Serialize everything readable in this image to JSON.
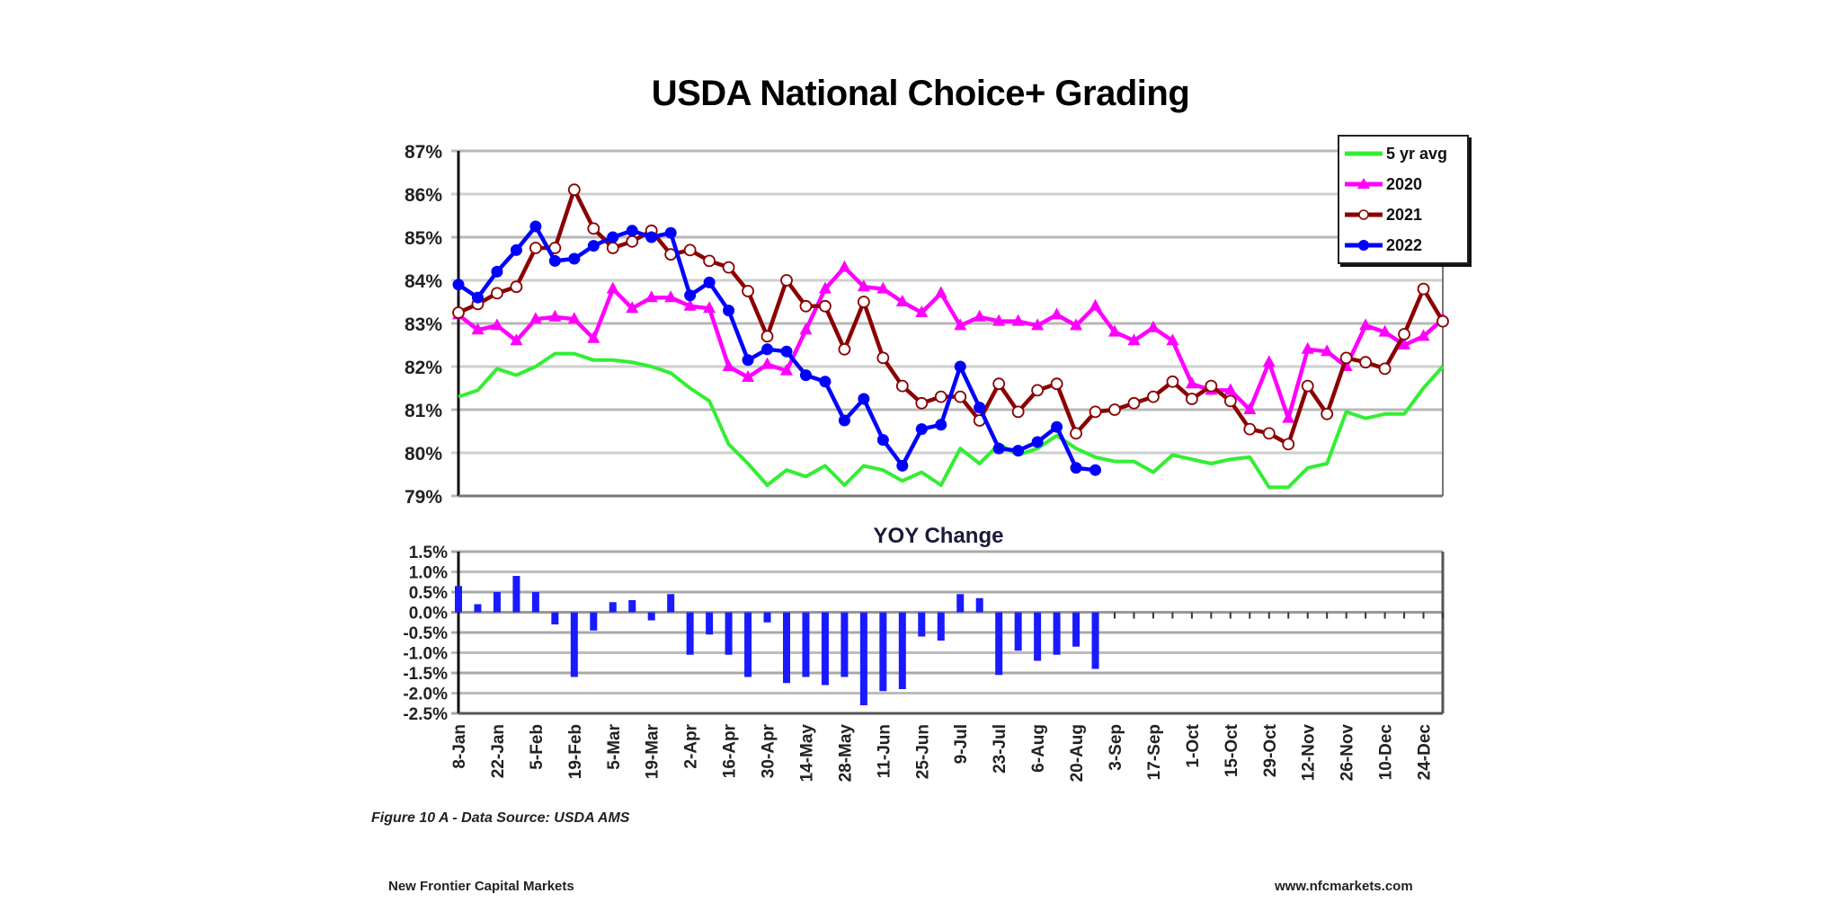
{
  "chart_data": [
    {
      "type": "line",
      "title": "USDA National Choice+ Grading",
      "xlabel": "",
      "ylabel": "",
      "ylim": [
        79,
        87
      ],
      "ytick_labels": [
        "79%",
        "80%",
        "81%",
        "82%",
        "83%",
        "84%",
        "85%",
        "86%",
        "87%"
      ],
      "yticks": [
        79,
        80,
        81,
        82,
        83,
        84,
        85,
        86,
        87
      ],
      "grid": true,
      "legend_position": "top-right",
      "x": [
        "8-Jan",
        "15-Jan",
        "22-Jan",
        "29-Jan",
        "5-Feb",
        "12-Feb",
        "19-Feb",
        "26-Feb",
        "5-Mar",
        "12-Mar",
        "19-Mar",
        "26-Mar",
        "2-Apr",
        "9-Apr",
        "16-Apr",
        "23-Apr",
        "30-Apr",
        "7-May",
        "14-May",
        "21-May",
        "28-May",
        "4-Jun",
        "11-Jun",
        "18-Jun",
        "25-Jun",
        "2-Jul",
        "9-Jul",
        "16-Jul",
        "23-Jul",
        "30-Jul",
        "6-Aug",
        "13-Aug",
        "20-Aug",
        "27-Aug",
        "3-Sep",
        "10-Sep",
        "17-Sep",
        "24-Sep",
        "1-Oct",
        "8-Oct",
        "15-Oct",
        "22-Oct",
        "29-Oct",
        "5-Nov",
        "12-Nov",
        "19-Nov",
        "26-Nov",
        "3-Dec",
        "10-Dec",
        "17-Dec",
        "24-Dec",
        "31-Dec"
      ],
      "xtick_labels": [
        "8-Jan",
        "22-Jan",
        "5-Feb",
        "19-Feb",
        "5-Mar",
        "19-Mar",
        "2-Apr",
        "16-Apr",
        "30-Apr",
        "14-May",
        "28-May",
        "11-Jun",
        "25-Jun",
        "9-Jul",
        "23-Jul",
        "6-Aug",
        "20-Aug",
        "3-Sep",
        "17-Sep",
        "1-Oct",
        "15-Oct",
        "29-Oct",
        "12-Nov",
        "26-Nov",
        "10-Dec",
        "24-Dec"
      ],
      "series": [
        {
          "name": "5 yr avg",
          "color": "#33ee33",
          "marker": "none",
          "values": [
            81.3,
            81.45,
            81.95,
            81.8,
            82.0,
            82.3,
            82.3,
            82.15,
            82.15,
            82.1,
            82.0,
            81.85,
            81.5,
            81.2,
            80.2,
            79.75,
            79.25,
            79.6,
            79.45,
            79.7,
            79.25,
            79.7,
            79.6,
            79.35,
            79.55,
            79.25,
            80.1,
            79.75,
            80.2,
            79.95,
            80.1,
            80.4,
            80.1,
            79.9,
            79.8,
            79.8,
            79.55,
            79.95,
            79.85,
            79.75,
            79.85,
            79.9,
            79.2,
            79.2,
            79.65,
            79.75,
            80.95,
            80.8,
            80.9,
            80.9,
            81.5,
            82.0
          ]
        },
        {
          "name": "2020",
          "color": "#ff00ff",
          "marker": "triangle",
          "values": [
            83.2,
            82.85,
            82.95,
            82.6,
            83.1,
            83.15,
            83.1,
            82.65,
            83.8,
            83.35,
            83.6,
            83.6,
            83.4,
            83.35,
            82.0,
            81.75,
            82.05,
            81.9,
            82.85,
            83.8,
            84.3,
            83.85,
            83.8,
            83.5,
            83.25,
            83.7,
            82.95,
            83.15,
            83.05,
            83.05,
            82.95,
            83.2,
            82.95,
            83.4,
            82.8,
            82.6,
            82.9,
            82.6,
            81.6,
            81.45,
            81.45,
            81.0,
            82.1,
            80.8,
            82.4,
            82.35,
            82.0,
            82.95,
            82.8,
            82.5,
            82.7,
            83.1
          ]
        },
        {
          "name": "2021",
          "color": "#8b0000",
          "marker": "open-circle",
          "values": [
            83.25,
            83.45,
            83.7,
            83.85,
            84.75,
            84.75,
            86.1,
            85.2,
            84.75,
            84.9,
            85.15,
            84.6,
            84.7,
            84.45,
            84.3,
            83.75,
            82.7,
            84.0,
            83.4,
            83.4,
            82.4,
            83.5,
            82.2,
            81.55,
            81.15,
            81.3,
            81.3,
            80.75,
            81.6,
            80.95,
            81.45,
            81.6,
            80.45,
            80.95,
            81.0,
            81.15,
            81.3,
            81.65,
            81.25,
            81.55,
            81.2,
            80.55,
            80.45,
            80.2,
            81.55,
            80.9,
            82.2,
            82.1,
            81.95,
            82.75,
            83.8,
            83.05
          ]
        },
        {
          "name": "2022",
          "color": "#0000ff",
          "marker": "filled-circle",
          "values": [
            83.9,
            83.6,
            84.2,
            84.7,
            85.25,
            84.45,
            84.5,
            84.8,
            85.0,
            85.15,
            85.0,
            85.1,
            83.65,
            83.95,
            83.3,
            82.15,
            82.4,
            82.35,
            81.8,
            81.65,
            80.75,
            81.25,
            80.3,
            79.7,
            80.55,
            80.65,
            82.0,
            81.05,
            80.1,
            80.05,
            80.25,
            80.6,
            79.65,
            79.6,
            null,
            null,
            null,
            null,
            null,
            null,
            null,
            null,
            null,
            null,
            null,
            null,
            null,
            null,
            null,
            null,
            null,
            null
          ]
        }
      ]
    },
    {
      "type": "bar",
      "title": "YOY Change",
      "xlabel": "",
      "ylabel": "",
      "ylim": [
        -2.5,
        1.5
      ],
      "ytick_labels": [
        "1.5%",
        "1.0%",
        "0.5%",
        "0.0%",
        "-0.5%",
        "-1.0%",
        "-1.5%",
        "-2.0%",
        "-2.5%"
      ],
      "yticks": [
        1.5,
        1.0,
        0.5,
        0.0,
        -0.5,
        -1.0,
        -1.5,
        -2.0,
        -2.5
      ],
      "grid": true,
      "categories_ref": "same weekly x as line chart (52 weeks, 8-Jan through 31-Dec)",
      "color": "#1a1aff",
      "values": [
        0.65,
        0.2,
        0.5,
        0.9,
        0.5,
        -0.3,
        -1.6,
        -0.45,
        0.25,
        0.3,
        -0.2,
        0.45,
        -1.05,
        -0.55,
        -1.05,
        -1.6,
        -0.25,
        -1.75,
        -1.6,
        -1.8,
        -1.6,
        -2.3,
        -1.95,
        -1.9,
        -0.6,
        -0.7,
        0.45,
        0.35,
        -1.55,
        -0.95,
        -1.2,
        -1.05,
        -0.85,
        -1.4,
        0,
        0,
        0,
        0,
        0,
        0,
        0,
        0,
        0,
        0,
        0,
        0,
        0,
        0,
        0,
        0,
        0,
        0
      ]
    }
  ],
  "legend": {
    "items": [
      {
        "label": "5 yr avg",
        "color": "#33ee33",
        "marker": "none"
      },
      {
        "label": "2020",
        "color": "#ff00ff",
        "marker": "triangle"
      },
      {
        "label": "2021",
        "color": "#8b0000",
        "marker": "open-circle"
      },
      {
        "label": "2022",
        "color": "#0000ff",
        "marker": "filled-circle"
      }
    ]
  },
  "caption": "Figure 10 A - Data Source: USDA AMS",
  "footer": {
    "left": "New Frontier Capital Markets",
    "right": "www.nfcmarkets.com"
  }
}
